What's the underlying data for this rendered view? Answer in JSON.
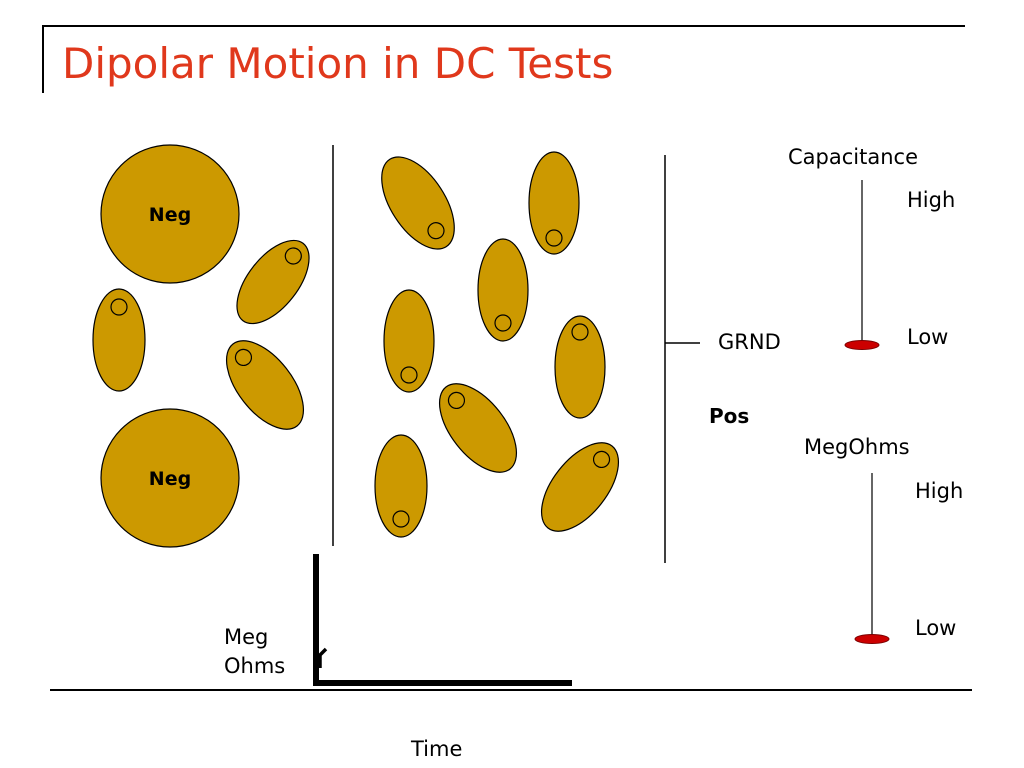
{
  "slide": {
    "title": "Dipolar Motion in DC Tests"
  },
  "diagram": {
    "neg_label": "Neg",
    "pos_label": "Pos",
    "ground_label": "GRND"
  },
  "capacitance_meter": {
    "label": "Capacitance",
    "high_label": "High",
    "low_label": "Low",
    "level": 0
  },
  "megohms_meter": {
    "label": "MegOhms",
    "high_label": "High",
    "low_label": "Low",
    "level": 0
  },
  "graph": {
    "ylabel_line1": "Meg",
    "ylabel_line2": "Ohms",
    "xlabel": "Time"
  },
  "colors": {
    "title": "#e0381c",
    "particle_fill": "#cc9900",
    "particle_stroke": "#000000",
    "indicator": "#cc0000"
  }
}
